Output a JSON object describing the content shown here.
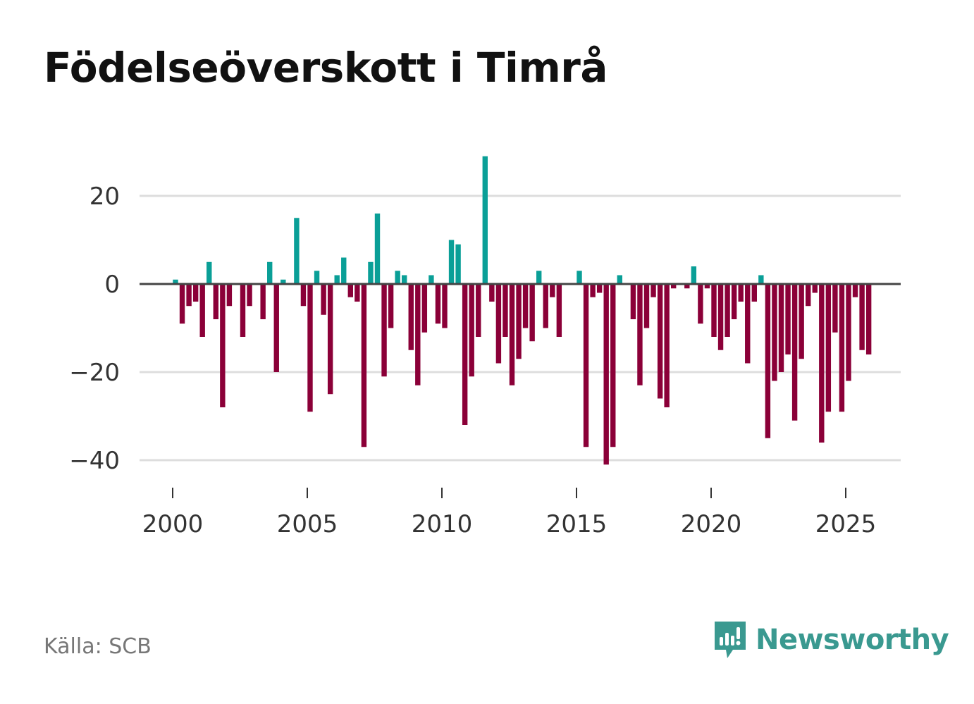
{
  "title": "Födelseöverskott i Timrå",
  "source": "Källa: SCB",
  "brand": "Newsworthy",
  "colors": {
    "positive": "#0a9f97",
    "negative": "#8b0038",
    "grid": "#dddddd",
    "zero": "#444444",
    "brand": "#3a9990"
  },
  "chart_data": {
    "type": "bar",
    "title": "Födelseöverskott i Timrå",
    "xlabel": "",
    "ylabel": "",
    "x_start": 2000.0,
    "x_step": 0.25,
    "xlim": [
      1999.5,
      2027.2
    ],
    "ylim": [
      -47,
      32
    ],
    "yticks": [
      20,
      0,
      -20,
      -40
    ],
    "ytick_labels": [
      "20",
      "0",
      "−20",
      "−40"
    ],
    "xticks": [
      2000,
      2005,
      2010,
      2015,
      2020,
      2025
    ],
    "xtick_labels": [
      "2000",
      "2005",
      "2010",
      "2015",
      "2020",
      "2025"
    ],
    "values": [
      1,
      -9,
      -5,
      -4,
      -12,
      5,
      -8,
      -28,
      -5,
      0,
      -12,
      -5,
      0,
      -8,
      5,
      -20,
      1,
      0,
      15,
      -5,
      -29,
      3,
      -7,
      -25,
      2,
      6,
      -3,
      -4,
      -37,
      5,
      16,
      -21,
      -10,
      3,
      2,
      -15,
      -23,
      -11,
      2,
      -9,
      -10,
      10,
      9,
      -32,
      -21,
      -12,
      29,
      -4,
      -18,
      -12,
      -23,
      -17,
      -10,
      -13,
      3,
      -10,
      -3,
      -12,
      0,
      0,
      3,
      -37,
      -3,
      -2,
      -41,
      -37,
      2,
      0,
      -8,
      -23,
      -10,
      -3,
      -26,
      -28,
      -1,
      0,
      -1,
      4,
      -9,
      -1,
      -12,
      -15,
      -12,
      -8,
      -4,
      -18,
      -4,
      2,
      -35,
      -22,
      -20,
      -16,
      -31,
      -17,
      -5,
      -2,
      -36,
      -29,
      -11,
      -29,
      -22,
      -3,
      -15,
      -16
    ]
  }
}
